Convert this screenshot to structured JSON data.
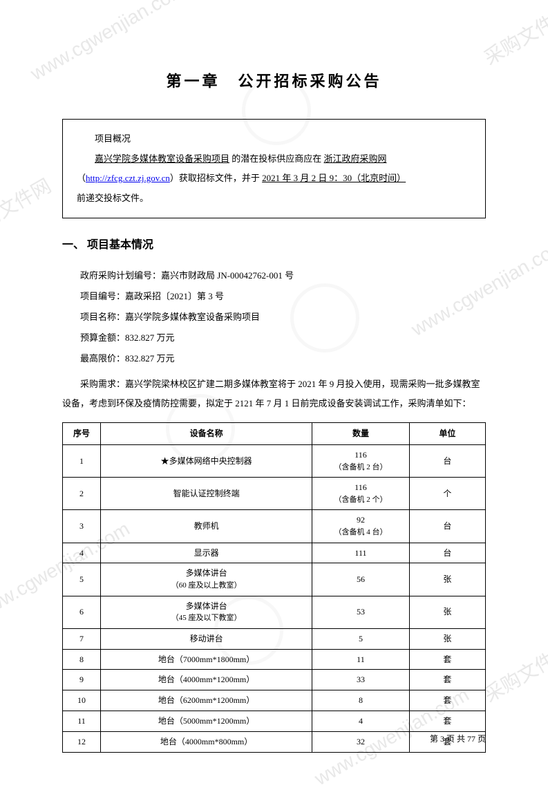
{
  "title": "第一章　公开招标采购公告",
  "overview": {
    "label": "项目概况",
    "project_name": "嘉兴学院多媒体教室设备采购项目",
    "text1": " 的潜在投标供应商应在 ",
    "site_name": "浙江政府采购网",
    "url": "http://zfcg.czt.zj.gov.cn",
    "text2": "）获取招标文件，并于 ",
    "deadline": "2021 年 3 月 2 日 9：30（北京时间）",
    "text3": "前递交投标文件。"
  },
  "section1_title": "一、 项目基本情况",
  "info": {
    "plan_no_label": "政府采购计划编号：",
    "plan_no": "嘉兴市财政局 JN-00042762-001 号",
    "proj_no_label": "项目编号：",
    "proj_no": "嘉政采招〔2021〕第 3 号",
    "proj_name_label": "项目名称：",
    "proj_name": "嘉兴学院多媒体教室设备采购项目",
    "budget_label": "预算金额：",
    "budget": "832.827 万元",
    "max_label": "最高限价：",
    "max": "832.827 万元"
  },
  "requirement": "采购需求：嘉兴学院梁林校区扩建二期多媒体教室将于 2021 年 9 月投入使用，现需采购一批多媒教室设备，考虑到环保及疫情防控需要，拟定于 2121 年 7 月 1 日前完成设备安装调试工作，采购清单如下：",
  "table": {
    "headers": [
      "序号",
      "设备名称",
      "数量",
      "单位"
    ],
    "rows": [
      {
        "seq": "1",
        "name": "★多媒体网络中央控制器",
        "qty": "116",
        "qty_sub": "（含备机 2 台）",
        "unit": "台"
      },
      {
        "seq": "2",
        "name": "智能认证控制终端",
        "qty": "116",
        "qty_sub": "（含备机 2 个）",
        "unit": "个"
      },
      {
        "seq": "3",
        "name": "教师机",
        "qty": "92",
        "qty_sub": "（含备机 4 台）",
        "unit": "台"
      },
      {
        "seq": "4",
        "name": "显示器",
        "qty": "111",
        "qty_sub": "",
        "unit": "台"
      },
      {
        "seq": "5",
        "name": "多媒体讲台",
        "name_sub": "（60 座及以上教室）",
        "qty": "56",
        "qty_sub": "",
        "unit": "张"
      },
      {
        "seq": "6",
        "name": "多媒体讲台",
        "name_sub": "（45 座及以下教室）",
        "qty": "53",
        "qty_sub": "",
        "unit": "张"
      },
      {
        "seq": "7",
        "name": "移动讲台",
        "qty": "5",
        "qty_sub": "",
        "unit": "张"
      },
      {
        "seq": "8",
        "name": "地台（7000mm*1800mm）",
        "qty": "11",
        "qty_sub": "",
        "unit": "套"
      },
      {
        "seq": "9",
        "name": "地台（4000mm*1200mm）",
        "qty": "33",
        "qty_sub": "",
        "unit": "套"
      },
      {
        "seq": "10",
        "name": "地台（6200mm*1200mm）",
        "qty": "8",
        "qty_sub": "",
        "unit": "套"
      },
      {
        "seq": "11",
        "name": "地台（5000mm*1200mm）",
        "qty": "4",
        "qty_sub": "",
        "unit": "套"
      },
      {
        "seq": "12",
        "name": "地台（4000mm*800mm）",
        "qty": "32",
        "qty_sub": "",
        "unit": "套"
      }
    ]
  },
  "footer": "第 3 页 共 77 页"
}
